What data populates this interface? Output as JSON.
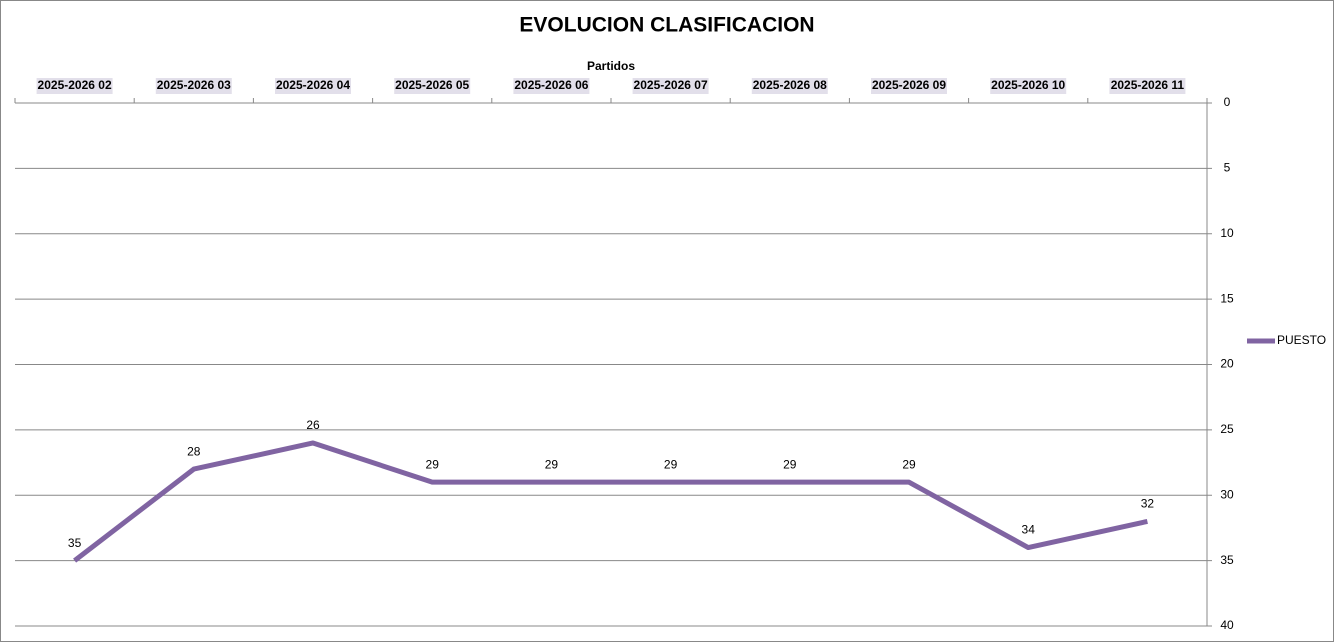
{
  "chart_data": {
    "type": "line",
    "title": "EVOLUCION CLASIFICACION",
    "xlabel": "Partidos",
    "categories": [
      "2025-2026 02",
      "2025-2026 03",
      "2025-2026 04",
      "2025-2026 05",
      "2025-2026 06",
      "2025-2026 07",
      "2025-2026 08",
      "2025-2026 09",
      "2025-2026 10",
      "2025-2026 11"
    ],
    "series": [
      {
        "name": "PUESTO",
        "color": "#8064a2",
        "values": [
          35,
          28,
          26,
          29,
          29,
          29,
          29,
          29,
          34,
          32
        ]
      }
    ],
    "ylim": [
      0,
      40
    ],
    "yticks": [
      0,
      5,
      10,
      15,
      20,
      25,
      30,
      35,
      40
    ],
    "y_inverted": true,
    "y_axis_side": "right",
    "x_axis_side": "top",
    "grid": true,
    "legend": "right",
    "data_labels": true
  }
}
